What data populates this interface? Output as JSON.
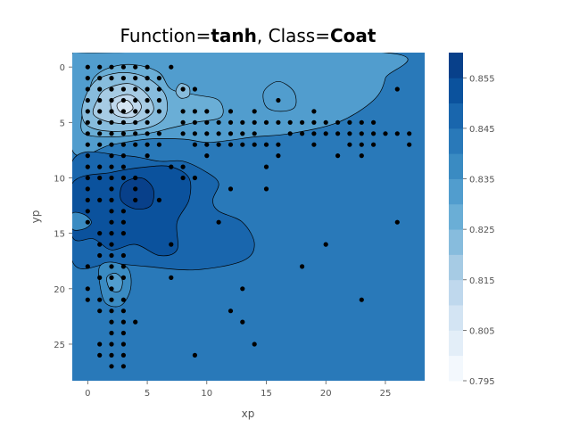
{
  "chart_data": {
    "type": "contour",
    "title_parts": [
      {
        "text": "Function=",
        "bold": false
      },
      {
        "text": "tanh",
        "bold": true
      },
      {
        "text": ", Class=",
        "bold": false
      },
      {
        "text": "Coat",
        "bold": true
      }
    ],
    "xlabel": "xp",
    "ylabel": "yp",
    "xlim": [
      -1.3,
      28.3
    ],
    "ylim": [
      28.3,
      -1.3
    ],
    "x_ticks": [
      0,
      5,
      10,
      15,
      20,
      25
    ],
    "y_ticks": [
      0,
      5,
      10,
      15,
      20,
      25
    ],
    "background_level": 0.84,
    "colorbar": {
      "levels": [
        0.795,
        0.8,
        0.805,
        0.81,
        0.815,
        0.82,
        0.825,
        0.83,
        0.835,
        0.84,
        0.845,
        0.85,
        0.855,
        0.86
      ],
      "tick_labels": [
        "0.795",
        "0.805",
        "0.815",
        "0.825",
        "0.835",
        "0.845",
        "0.855"
      ],
      "tick_values": [
        0.795,
        0.805,
        0.815,
        0.825,
        0.835,
        0.845,
        0.855
      ],
      "colors": [
        "#f3f8fd",
        "#e3eef8",
        "#d3e4f3",
        "#bfd8ed",
        "#a6cbe4",
        "#87bcdd",
        "#6aaed6",
        "#519dce",
        "#3a8bc2",
        "#2979b9",
        "#1966ad",
        "#0b529d",
        "#08408a"
      ]
    },
    "regions": [
      {
        "level": 0.83,
        "points": [
          [
            0,
            -1.3
          ],
          [
            25,
            -1.3
          ],
          [
            25,
            1
          ],
          [
            24,
            3
          ],
          [
            21,
            5
          ],
          [
            17,
            6
          ],
          [
            14,
            6.3
          ],
          [
            12,
            6.6
          ],
          [
            10,
            6.8
          ],
          [
            8,
            6.5
          ],
          [
            5,
            6.5
          ],
          [
            2,
            7
          ],
          [
            -1.3,
            7.5
          ],
          [
            -1.3,
            -1.3
          ]
        ]
      },
      {
        "level": 0.83,
        "points": [
          [
            14.8,
            2.2
          ],
          [
            16,
            1.3
          ],
          [
            17.3,
            2.2
          ],
          [
            17.4,
            3.6
          ],
          [
            16.2,
            4
          ],
          [
            15,
            3.6
          ]
        ]
      },
      {
        "level": 0.825,
        "points": [
          [
            2,
            0
          ],
          [
            4,
            -0.2
          ],
          [
            6,
            0.5
          ],
          [
            7,
            2
          ],
          [
            9,
            2.5
          ],
          [
            11,
            3
          ],
          [
            11.2,
            4.5
          ],
          [
            9,
            5
          ],
          [
            7,
            5.5
          ],
          [
            5,
            6
          ],
          [
            2,
            6.3
          ],
          [
            -0.3,
            6
          ],
          [
            -0.5,
            4.5
          ],
          [
            0,
            3
          ],
          [
            0.5,
            1
          ]
        ]
      },
      {
        "level": 0.82,
        "points": [
          [
            7.8,
            1.5
          ],
          [
            8.5,
            1.8
          ],
          [
            8.5,
            2.6
          ],
          [
            7.8,
            2.8
          ],
          [
            7.4,
            2.2
          ]
        ]
      },
      {
        "level": 0.82,
        "points": [
          [
            1,
            1
          ],
          [
            3,
            0.5
          ],
          [
            5,
            1
          ],
          [
            6.5,
            2.5
          ],
          [
            6.5,
            4.5
          ],
          [
            5,
            5.5
          ],
          [
            2,
            5.8
          ],
          [
            0,
            5.3
          ],
          [
            -0.5,
            4
          ],
          [
            0,
            2.2
          ]
        ]
      },
      {
        "level": 0.815,
        "points": [
          [
            1.5,
            2
          ],
          [
            3.5,
            1.5
          ],
          [
            5,
            2.5
          ],
          [
            5.5,
            4
          ],
          [
            4,
            5
          ],
          [
            2,
            5
          ],
          [
            0.5,
            4.3
          ],
          [
            0.8,
            3
          ]
        ]
      },
      {
        "level": 0.81,
        "points": [
          [
            2,
            3
          ],
          [
            3.5,
            2.5
          ],
          [
            4.5,
            3.5
          ],
          [
            3.8,
            4.5
          ],
          [
            2.3,
            4.3
          ]
        ]
      },
      {
        "level": 0.805,
        "points": [
          [
            2.5,
            3.3
          ],
          [
            3.3,
            3
          ],
          [
            3.8,
            3.7
          ],
          [
            3.2,
            4.2
          ],
          [
            2.6,
            3.9
          ]
        ]
      },
      {
        "level": 0.845,
        "points": [
          [
            -1.3,
            8.5
          ],
          [
            3,
            8
          ],
          [
            6,
            8.5
          ],
          [
            8,
            8.5
          ],
          [
            10,
            9.5
          ],
          [
            11,
            10.5
          ],
          [
            10.5,
            12
          ],
          [
            11,
            13
          ],
          [
            13,
            14
          ],
          [
            14,
            16
          ],
          [
            13,
            17.5
          ],
          [
            9,
            18.3
          ],
          [
            5,
            18
          ],
          [
            2,
            17.7
          ],
          [
            -1.3,
            17.5
          ]
        ]
      },
      {
        "level": 0.85,
        "points": [
          [
            -1.3,
            10.5
          ],
          [
            2,
            9.5
          ],
          [
            5,
            9
          ],
          [
            7,
            9
          ],
          [
            8.5,
            10
          ],
          [
            8.5,
            12
          ],
          [
            7.5,
            14
          ],
          [
            7.5,
            16.5
          ],
          [
            6,
            17
          ],
          [
            4,
            16
          ],
          [
            2,
            16.5
          ],
          [
            0.5,
            15.5
          ],
          [
            -1.3,
            15.3
          ]
        ]
      },
      {
        "level": 0.855,
        "points": [
          [
            3,
            10.5
          ],
          [
            4.5,
            10
          ],
          [
            5.5,
            11
          ],
          [
            5.3,
            12.5
          ],
          [
            4,
            12.8
          ],
          [
            2.8,
            12
          ]
        ]
      },
      {
        "level": 0.835,
        "points": [
          [
            1,
            18
          ],
          [
            2,
            17.6
          ],
          [
            3.4,
            18.2
          ],
          [
            3.6,
            20
          ],
          [
            2.8,
            21.5
          ],
          [
            1.5,
            21.3
          ],
          [
            1,
            19.5
          ]
        ]
      },
      {
        "level": 0.83,
        "points": [
          [
            1.6,
            19
          ],
          [
            2.3,
            18.6
          ],
          [
            2.9,
            19.2
          ],
          [
            2.7,
            20.2
          ],
          [
            1.9,
            20.1
          ]
        ]
      },
      {
        "level": 0.835,
        "points": [
          [
            -1.3,
            13.2
          ],
          [
            -0.3,
            13.3
          ],
          [
            0.3,
            14
          ],
          [
            -0.3,
            14.6
          ],
          [
            -1.3,
            14.6
          ]
        ]
      }
    ],
    "points": [
      [
        0,
        0
      ],
      [
        1,
        0
      ],
      [
        2,
        0
      ],
      [
        3,
        0
      ],
      [
        4,
        0
      ],
      [
        5,
        0
      ],
      [
        7,
        0
      ],
      [
        0,
        1
      ],
      [
        1,
        1
      ],
      [
        2,
        1
      ],
      [
        3,
        1
      ],
      [
        4,
        1
      ],
      [
        5,
        1
      ],
      [
        6,
        1
      ],
      [
        0,
        2
      ],
      [
        1,
        2
      ],
      [
        2,
        2
      ],
      [
        3,
        2
      ],
      [
        4,
        2
      ],
      [
        5,
        2
      ],
      [
        6,
        2
      ],
      [
        8,
        2
      ],
      [
        9,
        2
      ],
      [
        0,
        3
      ],
      [
        1,
        3
      ],
      [
        2,
        3
      ],
      [
        3,
        3
      ],
      [
        4,
        3
      ],
      [
        5,
        3
      ],
      [
        6,
        3
      ],
      [
        16,
        3
      ],
      [
        0,
        4
      ],
      [
        1,
        4
      ],
      [
        2,
        4
      ],
      [
        3,
        4
      ],
      [
        4,
        4
      ],
      [
        5,
        4
      ],
      [
        6,
        4
      ],
      [
        8,
        4
      ],
      [
        9,
        4
      ],
      [
        10,
        4
      ],
      [
        12,
        4
      ],
      [
        14,
        4
      ],
      [
        19,
        4
      ],
      [
        0,
        5
      ],
      [
        1,
        5
      ],
      [
        2,
        5
      ],
      [
        3,
        5
      ],
      [
        4,
        5
      ],
      [
        5,
        5
      ],
      [
        8,
        5
      ],
      [
        9,
        5
      ],
      [
        10,
        5
      ],
      [
        11,
        5
      ],
      [
        12,
        5
      ],
      [
        13,
        5
      ],
      [
        14,
        5
      ],
      [
        15,
        5
      ],
      [
        16,
        5
      ],
      [
        17,
        5
      ],
      [
        18,
        5
      ],
      [
        19,
        5
      ],
      [
        20,
        5
      ],
      [
        21,
        5
      ],
      [
        22,
        5
      ],
      [
        23,
        5
      ],
      [
        24,
        5
      ],
      [
        0,
        6
      ],
      [
        1,
        6
      ],
      [
        2,
        6
      ],
      [
        3,
        6
      ],
      [
        4,
        6
      ],
      [
        5,
        6
      ],
      [
        6,
        6
      ],
      [
        8,
        6
      ],
      [
        9,
        6
      ],
      [
        10,
        6
      ],
      [
        11,
        6
      ],
      [
        12,
        6
      ],
      [
        13,
        6
      ],
      [
        14,
        6
      ],
      [
        17,
        6
      ],
      [
        18,
        6
      ],
      [
        19,
        6
      ],
      [
        20,
        6
      ],
      [
        21,
        6
      ],
      [
        22,
        6
      ],
      [
        23,
        6
      ],
      [
        24,
        6
      ],
      [
        25,
        6
      ],
      [
        26,
        6
      ],
      [
        27,
        6
      ],
      [
        0,
        7
      ],
      [
        1,
        7
      ],
      [
        2,
        7
      ],
      [
        3,
        7
      ],
      [
        4,
        7
      ],
      [
        5,
        7
      ],
      [
        6,
        7
      ],
      [
        9,
        7
      ],
      [
        10,
        7
      ],
      [
        11,
        7
      ],
      [
        12,
        7
      ],
      [
        13,
        7
      ],
      [
        14,
        7
      ],
      [
        15,
        7
      ],
      [
        16,
        7
      ],
      [
        19,
        7
      ],
      [
        22,
        7
      ],
      [
        23,
        7
      ],
      [
        24,
        7
      ],
      [
        27,
        7
      ],
      [
        0,
        8
      ],
      [
        2,
        8
      ],
      [
        3,
        8
      ],
      [
        5,
        8
      ],
      [
        10,
        8
      ],
      [
        16,
        8
      ],
      [
        21,
        8
      ],
      [
        23,
        8
      ],
      [
        0,
        9
      ],
      [
        1,
        9
      ],
      [
        2,
        9
      ],
      [
        3,
        9
      ],
      [
        7,
        9
      ],
      [
        8,
        9
      ],
      [
        15,
        9
      ],
      [
        0,
        10
      ],
      [
        1,
        10
      ],
      [
        2,
        10
      ],
      [
        3,
        10
      ],
      [
        4,
        10
      ],
      [
        8,
        10
      ],
      [
        9,
        10
      ],
      [
        0,
        11
      ],
      [
        2,
        11
      ],
      [
        4,
        11
      ],
      [
        12,
        11
      ],
      [
        15,
        11
      ],
      [
        0,
        12
      ],
      [
        1,
        12
      ],
      [
        2,
        12
      ],
      [
        4,
        12
      ],
      [
        6,
        12
      ],
      [
        0,
        13
      ],
      [
        2,
        13
      ],
      [
        3,
        13
      ],
      [
        0,
        14
      ],
      [
        2,
        14
      ],
      [
        3,
        14
      ],
      [
        11,
        14
      ],
      [
        26,
        14
      ],
      [
        1,
        15
      ],
      [
        2,
        15
      ],
      [
        3,
        15
      ],
      [
        1,
        16
      ],
      [
        2,
        16
      ],
      [
        7,
        16
      ],
      [
        20,
        16
      ],
      [
        1,
        17
      ],
      [
        2,
        17
      ],
      [
        3,
        17
      ],
      [
        0,
        18
      ],
      [
        2,
        18
      ],
      [
        3,
        18
      ],
      [
        18,
        18
      ],
      [
        1,
        19
      ],
      [
        2,
        19
      ],
      [
        3,
        19
      ],
      [
        7,
        19
      ],
      [
        0,
        20
      ],
      [
        2,
        20
      ],
      [
        13,
        20
      ],
      [
        0,
        21
      ],
      [
        1,
        21
      ],
      [
        2,
        21
      ],
      [
        3,
        21
      ],
      [
        23,
        21
      ],
      [
        1,
        22
      ],
      [
        2,
        22
      ],
      [
        3,
        22
      ],
      [
        12,
        22
      ],
      [
        2,
        23
      ],
      [
        3,
        23
      ],
      [
        4,
        23
      ],
      [
        13,
        23
      ],
      [
        2,
        24
      ],
      [
        3,
        24
      ],
      [
        1,
        25
      ],
      [
        2,
        25
      ],
      [
        3,
        25
      ],
      [
        14,
        25
      ],
      [
        1,
        26
      ],
      [
        2,
        26
      ],
      [
        3,
        26
      ],
      [
        9,
        26
      ],
      [
        2,
        27
      ],
      [
        3,
        27
      ],
      [
        26,
        2
      ]
    ]
  }
}
